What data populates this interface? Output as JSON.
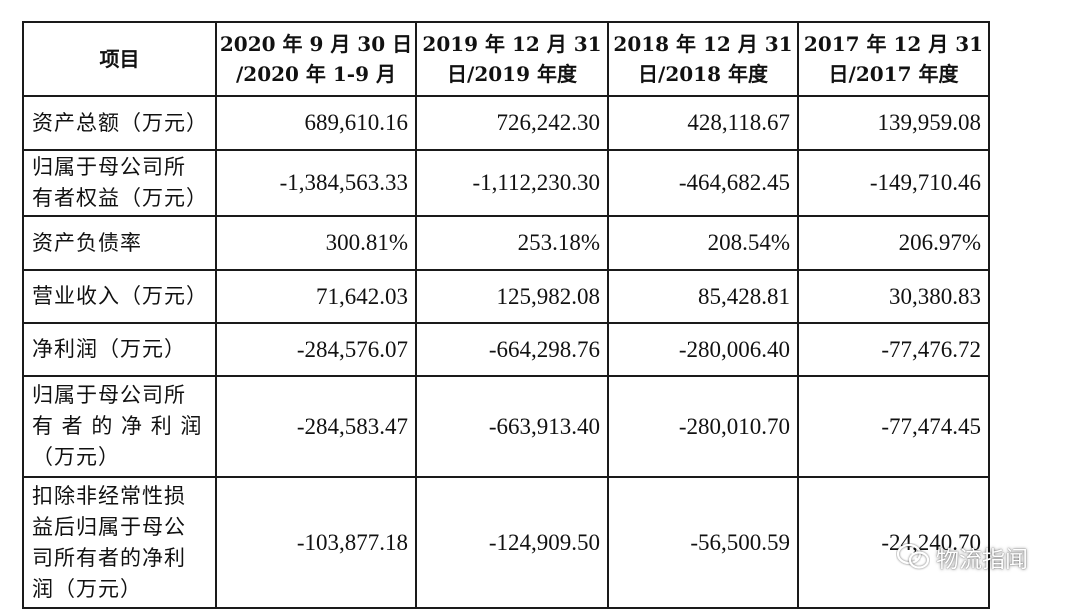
{
  "table": {
    "headers": [
      {
        "line1": "项目",
        "line2": ""
      },
      {
        "line1": "2020 年 9 月 30 日",
        "line2": "/2020 年 1-9 月"
      },
      {
        "line1": "2019 年 12 月 31",
        "line2": "日/2019 年度"
      },
      {
        "line1": "2018 年 12 月 31",
        "line2": "日/2018 年度"
      },
      {
        "line1": "2017 年 12 月 31",
        "line2": "日/2017 年度"
      }
    ],
    "rows": [
      {
        "label": [
          "资产总额（万元）"
        ],
        "values": [
          "689,610.16",
          "726,242.30",
          "428,118.67",
          "139,959.08"
        ]
      },
      {
        "label": [
          "归属于母公司所",
          "有者权益（万元）"
        ],
        "values": [
          "-1,384,563.33",
          "-1,112,230.30",
          "-464,682.45",
          "-149,710.46"
        ]
      },
      {
        "label": [
          "资产负债率"
        ],
        "values": [
          "300.81%",
          "253.18%",
          "208.54%",
          "206.97%"
        ]
      },
      {
        "label": [
          "营业收入（万元）"
        ],
        "values": [
          "71,642.03",
          "125,982.08",
          "85,428.81",
          "30,380.83"
        ]
      },
      {
        "label": [
          "净利润（万元）"
        ],
        "values": [
          "-284,576.07",
          "-664,298.76",
          "-280,006.40",
          "-77,476.72"
        ]
      },
      {
        "label": [
          "归属于母公司所",
          "有 者 的 净 利 润",
          "（万元）"
        ],
        "values": [
          "-284,583.47",
          "-663,913.40",
          "-280,010.70",
          "-77,474.45"
        ]
      },
      {
        "label": [
          "扣除非经常性损",
          "益后归属于母公",
          "司所有者的净利",
          "润（万元）"
        ],
        "values": [
          "-103,877.18",
          "-124,909.50",
          "-56,500.59",
          "-24,240.70"
        ]
      }
    ]
  },
  "watermark": {
    "text": "物流指闻",
    "icon": "wechat-icon"
  }
}
